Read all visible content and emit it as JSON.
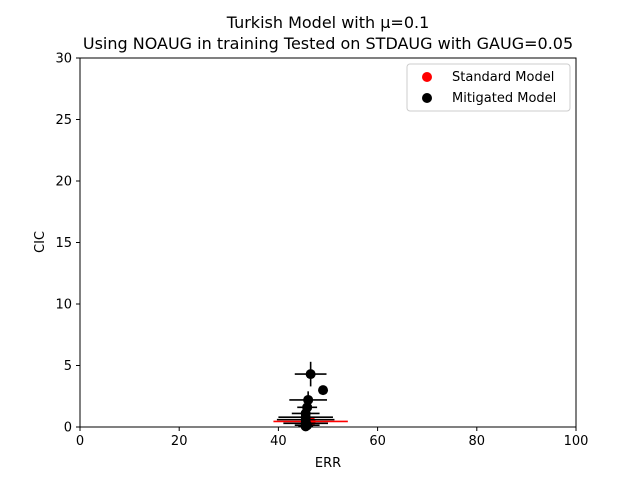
{
  "chart_data": {
    "type": "scatter",
    "title": "Turkish Model with μ=0.1",
    "subtitle": "Using NOAUG in training Tested on STDAUG with GAUG=0.05",
    "xlabel": "ERR",
    "ylabel": "CIC",
    "xlim": [
      0,
      100
    ],
    "ylim": [
      0,
      30
    ],
    "xticks": [
      "0",
      "20",
      "40",
      "60",
      "80",
      "100"
    ],
    "yticks": [
      "0",
      "5",
      "10",
      "15",
      "20",
      "25",
      "30"
    ],
    "grid": false,
    "legend_position": "top-right",
    "series": [
      {
        "name": "Standard Model",
        "color": "#ff0000",
        "points": [
          {
            "x": 46.5,
            "y": 0.45,
            "xerr": 7.5,
            "yerr": 0.2
          }
        ]
      },
      {
        "name": "Mitigated Model",
        "color": "#000000",
        "points": [
          {
            "x": 46.5,
            "y": 4.3,
            "xerr": 3.2,
            "yerr": 1.0
          },
          {
            "x": 49.0,
            "y": 3.0,
            "xerr": 0.0,
            "yerr": 0.0
          },
          {
            "x": 46.0,
            "y": 2.2,
            "xerr": 3.8,
            "yerr": 0.7
          },
          {
            "x": 45.8,
            "y": 1.6,
            "xerr": 2.0,
            "yerr": 0.5
          },
          {
            "x": 45.5,
            "y": 1.1,
            "xerr": 2.8,
            "yerr": 0.4
          },
          {
            "x": 45.5,
            "y": 0.8,
            "xerr": 5.5,
            "yerr": 0.3
          },
          {
            "x": 45.5,
            "y": 0.6,
            "xerr": 5.8,
            "yerr": 0.25
          },
          {
            "x": 45.5,
            "y": 0.3,
            "xerr": 4.5,
            "yerr": 0.2
          },
          {
            "x": 45.8,
            "y": 0.15,
            "xerr": 2.5,
            "yerr": 0.15
          },
          {
            "x": 45.5,
            "y": 0.05,
            "xerr": 1.5,
            "yerr": 0.1
          }
        ]
      }
    ]
  }
}
